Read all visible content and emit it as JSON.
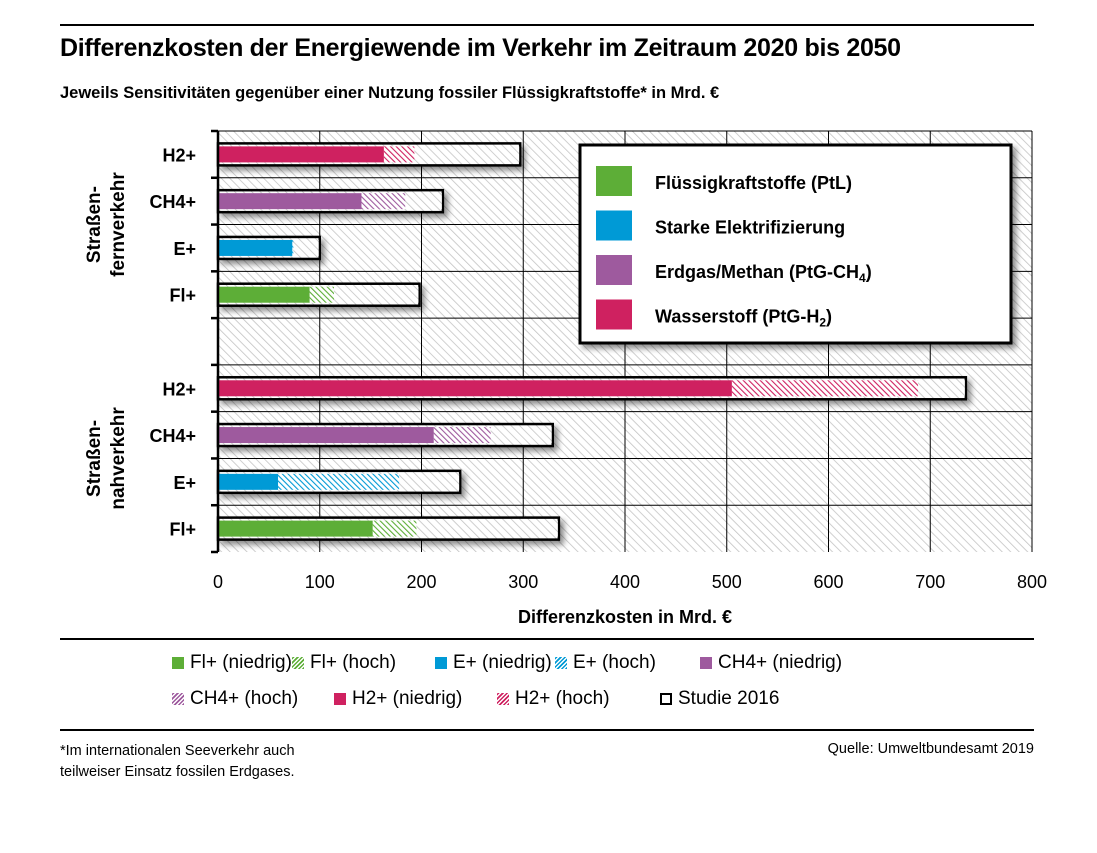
{
  "title": "Differenzkosten der Energiewende im Verkehr im Zeitraum 2020 bis 2050",
  "subtitle": "Jeweils Sensitivitäten gegenüber einer Nutzung fossiler Flüssigkraftstoffe* in Mrd. €",
  "colors": {
    "fl": "#5dae37",
    "e": "#009ad6",
    "ch4": "#9e5a9e",
    "h2": "#cf2160",
    "grid": "#000000",
    "background_hatch": "#c8c8c8"
  },
  "chart_data": {
    "type": "bar",
    "orientation": "horizontal",
    "title": "Differenzkosten der Energiewende im Verkehr im Zeitraum 2020 bis 2050",
    "xlabel": "Differenzkosten in Mrd. €",
    "ylabel": "",
    "xlim": [
      0,
      800
    ],
    "xticks": [
      0,
      100,
      200,
      300,
      400,
      500,
      600,
      700,
      800
    ],
    "grid": true,
    "groups": [
      {
        "name": "Straßen-\nfernverkehr",
        "label_lines": [
          "Straßen-",
          "fernverkehr"
        ],
        "categories": [
          "H2+",
          "CH4+",
          "E+",
          "Fl+"
        ],
        "series": [
          {
            "name": "niedrig",
            "values": [
              163,
              141,
              73,
              90
            ]
          },
          {
            "name": "hoch",
            "values": [
              193,
              184,
              74,
              114
            ]
          },
          {
            "name": "Studie 2016",
            "values": [
              297,
              221,
              100,
              198
            ]
          }
        ],
        "color_keys": [
          "h2",
          "ch4",
          "e",
          "fl"
        ]
      },
      {
        "name": "Straßen-\nnahverkehr",
        "label_lines": [
          "Straßen-",
          "nahverkehr"
        ],
        "categories": [
          "H2+",
          "CH4+",
          "E+",
          "Fl+"
        ],
        "series": [
          {
            "name": "niedrig",
            "values": [
              505,
              212,
              59,
              152
            ]
          },
          {
            "name": "hoch",
            "values": [
              688,
              268,
              178,
              195
            ]
          },
          {
            "name": "Studie 2016",
            "values": [
              735,
              329,
              238,
              335
            ]
          }
        ],
        "color_keys": [
          "h2",
          "ch4",
          "e",
          "fl"
        ]
      }
    ],
    "inner_legend": {
      "placement": "top-right",
      "entries": [
        {
          "label": "Flüssigkraftstoffe (PtL)",
          "color_key": "fl"
        },
        {
          "label": "Starke Elektrifizierung",
          "color_key": "e"
        },
        {
          "label": "Erdgas/Methan (PtG-CH",
          "sub": "4",
          "suffix": ")",
          "color_key": "ch4"
        },
        {
          "label": "Wasserstoff (PtG-H",
          "sub": "2",
          "suffix": ")",
          "color_key": "h2"
        }
      ]
    },
    "bottom_legend": {
      "placement": "bottom",
      "entries": [
        {
          "label": "Fl+ (niedrig)",
          "style": "solid",
          "color_key": "fl"
        },
        {
          "label": "Fl+ (hoch)",
          "style": "hatch",
          "color_key": "fl"
        },
        {
          "label": "E+ (niedrig)",
          "style": "solid",
          "color_key": "e"
        },
        {
          "label": "E+ (hoch)",
          "style": "hatch",
          "color_key": "e"
        },
        {
          "label": "CH4+ (niedrig)",
          "style": "solid",
          "color_key": "ch4"
        },
        {
          "label": "CH4+ (hoch)",
          "style": "hatch",
          "color_key": "ch4"
        },
        {
          "label": "H2+ (niedrig)",
          "style": "solid",
          "color_key": "h2"
        },
        {
          "label": "H2+ (hoch)",
          "style": "hatch",
          "color_key": "h2"
        },
        {
          "label": "Studie 2016",
          "style": "outline",
          "color_key": ""
        }
      ]
    }
  },
  "footnote": [
    "*Im internationalen Seeverkehr auch",
    "teilweiser Einsatz fossilen Erdgases."
  ],
  "source": "Quelle: Umweltbundesamt 2019"
}
